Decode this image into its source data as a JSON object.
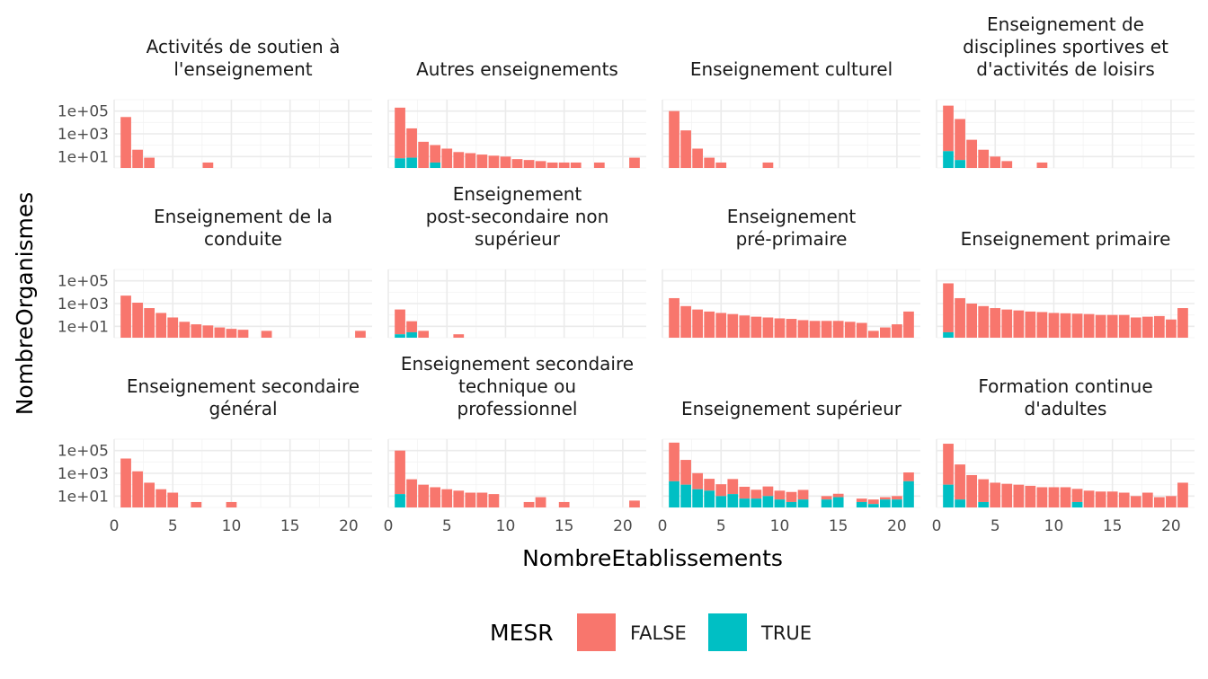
{
  "chart_data": {
    "type": "bar",
    "stacked": true,
    "xlabel": "NombreEtablissements",
    "ylabel": "NombreOrganismes",
    "y_scale": "log10",
    "ylim": [
      1,
      1000000
    ],
    "y_ticks": [
      {
        "value": 10,
        "label": "1e+01"
      },
      {
        "value": 1000,
        "label": "1e+03"
      },
      {
        "value": 100000,
        "label": "1e+05"
      }
    ],
    "xlim": [
      0,
      22
    ],
    "x_ticks": [
      {
        "value": 0,
        "label": "0"
      },
      {
        "value": 5,
        "label": "5"
      },
      {
        "value": 10,
        "label": "10"
      },
      {
        "value": 15,
        "label": "15"
      },
      {
        "value": 20,
        "label": "20"
      }
    ],
    "grid": true,
    "legend": {
      "title": "MESR",
      "position": "bottom",
      "entries": [
        {
          "key": "FALSE",
          "label": "FALSE",
          "color": "#F8766D"
        },
        {
          "key": "TRUE",
          "label": "TRUE",
          "color": "#00BFC4"
        }
      ]
    },
    "facets": [
      {
        "title_lines": [
          "Activités de soutien à",
          "l'enseignement"
        ],
        "false": {
          "1": 30000,
          "2": 40,
          "3": 8,
          "8": 3
        },
        "true": {}
      },
      {
        "title_lines": [
          "Autres enseignements"
        ],
        "false": {
          "1": 200000,
          "2": 3000,
          "3": 200,
          "4": 100,
          "5": 50,
          "6": 25,
          "7": 20,
          "8": 15,
          "9": 12,
          "10": 10,
          "11": 6,
          "12": 5,
          "13": 4,
          "14": 3,
          "15": 3,
          "16": 3,
          "18": 3,
          "21": 8
        },
        "true": {
          "1": 7,
          "2": 8,
          "4": 3
        }
      },
      {
        "title_lines": [
          "Enseignement culturel"
        ],
        "false": {
          "1": 100000,
          "2": 2000,
          "3": 50,
          "4": 8,
          "5": 3,
          "9": 3
        },
        "true": {}
      },
      {
        "title_lines": [
          "Enseignement de",
          "disciplines sportives et",
          "d'activités de loisirs"
        ],
        "false": {
          "1": 300000,
          "2": 20000,
          "3": 300,
          "4": 40,
          "5": 10,
          "6": 4,
          "9": 3
        },
        "true": {
          "1": 30,
          "2": 5
        }
      },
      {
        "title_lines": [
          "Enseignement de la",
          "conduite"
        ],
        "false": {
          "1": 5000,
          "2": 1200,
          "3": 400,
          "4": 150,
          "5": 60,
          "6": 25,
          "7": 15,
          "8": 12,
          "9": 8,
          "10": 6,
          "11": 5,
          "13": 4,
          "21": 4
        },
        "true": {}
      },
      {
        "title_lines": [
          "Enseignement",
          "post-secondaire non",
          "supérieur"
        ],
        "false": {
          "1": 300,
          "2": 25,
          "3": 4,
          "6": 2
        },
        "true": {
          "1": 2,
          "2": 3
        }
      },
      {
        "title_lines": [
          "Enseignement",
          "pré-primaire"
        ],
        "false": {
          "1": 3000,
          "2": 600,
          "3": 300,
          "4": 200,
          "5": 150,
          "6": 120,
          "7": 90,
          "8": 70,
          "9": 60,
          "10": 50,
          "11": 45,
          "12": 35,
          "13": 30,
          "14": 30,
          "15": 30,
          "16": 25,
          "17": 20,
          "18": 4,
          "19": 8,
          "20": 15,
          "21": 200
        },
        "true": {}
      },
      {
        "title_lines": [
          "Enseignement primaire"
        ],
        "false": {
          "1": 60000,
          "2": 3000,
          "3": 1000,
          "4": 600,
          "5": 400,
          "6": 300,
          "7": 250,
          "8": 200,
          "9": 180,
          "10": 150,
          "11": 140,
          "12": 130,
          "13": 120,
          "14": 100,
          "15": 100,
          "16": 100,
          "17": 60,
          "18": 70,
          "19": 80,
          "20": 40,
          "21": 400
        },
        "true": {
          "1": 3
        }
      },
      {
        "title_lines": [
          "Enseignement secondaire",
          "général"
        ],
        "false": {
          "1": 20000,
          "2": 1500,
          "3": 150,
          "4": 40,
          "5": 20,
          "7": 3,
          "10": 3
        },
        "true": {}
      },
      {
        "title_lines": [
          "Enseignement secondaire",
          "technique ou",
          "professionnel"
        ],
        "false": {
          "1": 100000,
          "2": 300,
          "3": 100,
          "4": 60,
          "5": 40,
          "6": 30,
          "7": 20,
          "8": 20,
          "9": 15,
          "12": 3,
          "13": 8,
          "15": 3,
          "21": 4
        },
        "true": {
          "1": 15
        }
      },
      {
        "title_lines": [
          "Enseignement supérieur"
        ],
        "false": {
          "1": 500000,
          "2": 15000,
          "3": 1000,
          "4": 300,
          "5": 100,
          "6": 300,
          "7": 60,
          "8": 30,
          "9": 60,
          "10": 25,
          "11": 20,
          "12": 30,
          "14": 5,
          "15": 8,
          "17": 3,
          "18": 3,
          "19": 3,
          "20": 5,
          "21": 1000
        },
        "true": {
          "1": 200,
          "2": 100,
          "3": 40,
          "4": 30,
          "5": 10,
          "6": 15,
          "7": 6,
          "8": 6,
          "9": 10,
          "10": 5,
          "11": 3,
          "12": 5,
          "14": 5,
          "15": 8,
          "17": 3,
          "18": 2,
          "19": 5,
          "20": 5,
          "21": 200
        }
      },
      {
        "title_lines": [
          "Formation continue",
          "d'adultes"
        ],
        "false": {
          "1": 400000,
          "2": 6000,
          "3": 700,
          "4": 300,
          "5": 150,
          "6": 120,
          "7": 100,
          "8": 80,
          "9": 60,
          "10": 60,
          "11": 60,
          "12": 40,
          "13": 30,
          "14": 25,
          "15": 25,
          "16": 20,
          "17": 10,
          "18": 20,
          "19": 8,
          "20": 10,
          "21": 150
        },
        "true": {
          "1": 100,
          "2": 5,
          "4": 3,
          "12": 3
        }
      }
    ]
  }
}
